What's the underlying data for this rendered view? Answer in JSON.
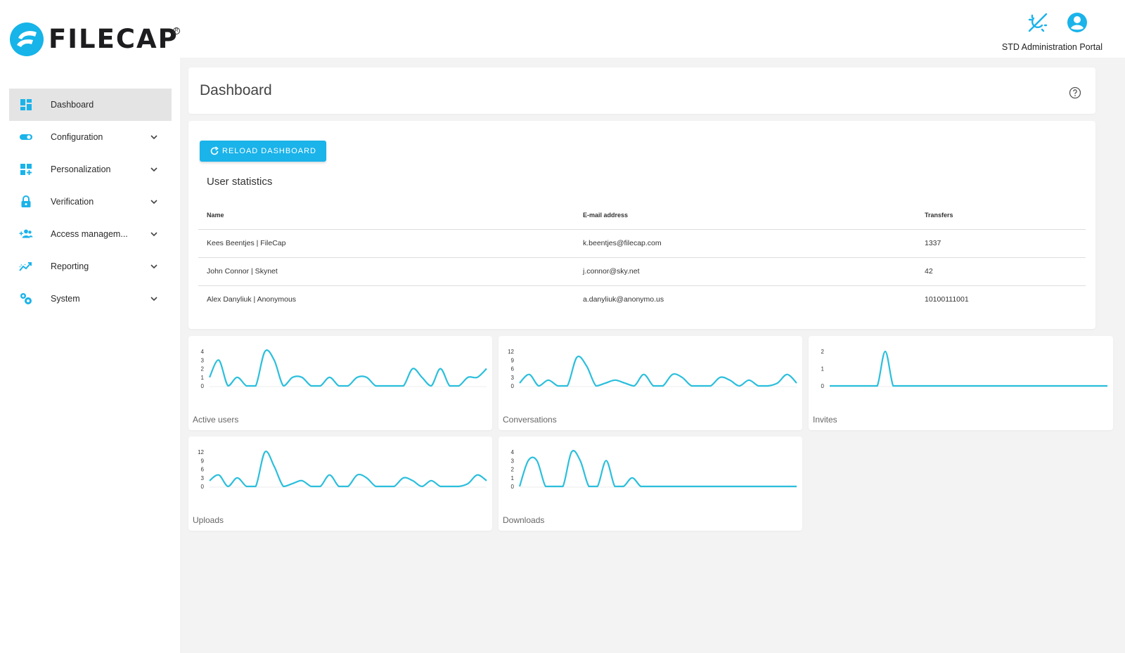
{
  "header": {
    "logo_text": "FILECAP",
    "portal_label": "STD Administration Portal",
    "icons": [
      "theme-toggle-icon",
      "user-account-icon"
    ]
  },
  "sidebar": {
    "items": [
      {
        "label": "Dashboard",
        "icon": "dashboard-icon",
        "active": true,
        "expandable": false
      },
      {
        "label": "Configuration",
        "icon": "toggle-icon",
        "active": false,
        "expandable": true
      },
      {
        "label": "Personalization",
        "icon": "add-widget-icon",
        "active": false,
        "expandable": true
      },
      {
        "label": "Verification",
        "icon": "lock-icon",
        "active": false,
        "expandable": true
      },
      {
        "label": "Access managem...",
        "icon": "group-add-icon",
        "active": false,
        "expandable": true
      },
      {
        "label": "Reporting",
        "icon": "trending-icon",
        "active": false,
        "expandable": true
      },
      {
        "label": "System",
        "icon": "settings-gears-icon",
        "active": false,
        "expandable": true
      }
    ]
  },
  "main": {
    "page_title": "Dashboard",
    "reload_label": "RELOAD DASHBOARD",
    "section_title": "User statistics",
    "table": {
      "headers": [
        "Name",
        "E-mail address",
        "Transfers"
      ],
      "rows": [
        [
          "Kees Beentjes | FileCap",
          "k.beentjes@filecap.com",
          "1337"
        ],
        [
          "John Connor | Skynet",
          "j.connor@sky.net",
          "42"
        ],
        [
          "Alex Danyliuk | Anonymous",
          "a.danyliuk@anonymo.us",
          "10100111001"
        ]
      ]
    }
  },
  "colors": {
    "accent": "#1ab3ea",
    "line": "#2bbfdc",
    "sidebar_active": "#e4e4e4",
    "background": "#f3f3f3"
  },
  "chart_data": [
    {
      "type": "line",
      "title": "Active users",
      "yticks": [
        "0",
        "1",
        "2",
        "3",
        "4"
      ],
      "ylim": [
        0,
        4
      ],
      "values": [
        1,
        3,
        0,
        1,
        0,
        0,
        4,
        3,
        0,
        1,
        1,
        0,
        0,
        1,
        0,
        0,
        1,
        1,
        0,
        0,
        0,
        0,
        2,
        1,
        0,
        2,
        0,
        0,
        1,
        1,
        2
      ]
    },
    {
      "type": "line",
      "title": "Conversations",
      "yticks": [
        "0",
        "3",
        "6",
        "9",
        "12"
      ],
      "ylim": [
        0,
        12
      ],
      "values": [
        1,
        4,
        0,
        2,
        0,
        0,
        10,
        7,
        0,
        1,
        2,
        1,
        0,
        4,
        0,
        0,
        4,
        3,
        0,
        0,
        0,
        3,
        2,
        0,
        2,
        0,
        0,
        1,
        4,
        1
      ]
    },
    {
      "type": "line",
      "title": "Invites",
      "yticks": [
        "0",
        "1",
        "2"
      ],
      "ylim": [
        0,
        2
      ],
      "values": [
        0,
        0,
        0,
        0,
        0,
        0,
        0,
        2,
        0,
        0,
        0,
        0,
        0,
        0,
        0,
        0,
        0,
        0,
        0,
        0,
        0,
        0,
        0,
        0,
        0,
        0,
        0,
        0,
        0,
        0,
        0,
        0,
        0,
        0,
        0,
        0
      ]
    },
    {
      "type": "line",
      "title": "Uploads",
      "yticks": [
        "0",
        "3",
        "6",
        "9",
        "12"
      ],
      "ylim": [
        0,
        12
      ],
      "values": [
        2,
        4,
        0,
        3,
        0,
        0,
        12,
        7,
        0,
        1,
        2,
        0,
        0,
        4,
        0,
        0,
        4,
        3,
        0,
        0,
        0,
        3,
        2,
        0,
        2,
        0,
        0,
        0,
        1,
        4,
        2
      ]
    },
    {
      "type": "line",
      "title": "Downloads",
      "yticks": [
        "0",
        "1",
        "2",
        "3",
        "4"
      ],
      "ylim": [
        0,
        4
      ],
      "values": [
        0,
        3,
        3,
        0,
        0,
        0,
        4,
        3,
        0,
        0,
        3,
        0,
        0,
        1,
        0,
        0,
        0,
        0,
        0,
        0,
        0,
        0,
        0,
        0,
        0,
        0,
        0,
        0,
        0,
        0,
        0,
        0,
        0
      ]
    }
  ]
}
